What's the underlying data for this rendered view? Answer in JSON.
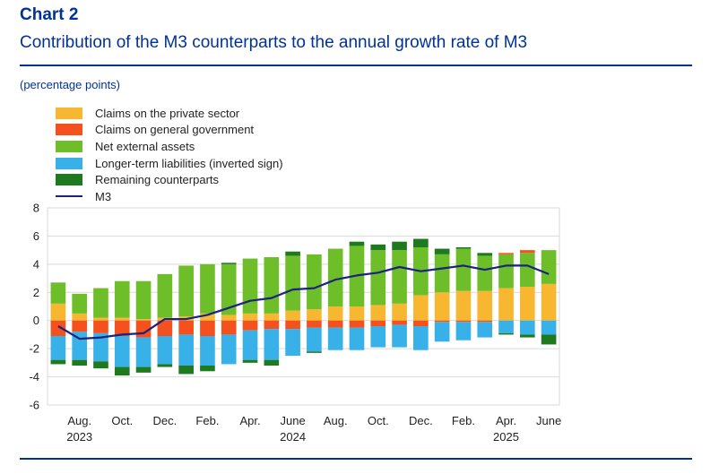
{
  "header": {
    "chart_label": "Chart 2",
    "title": "Contribution of the M3 counterparts to the annual growth rate of M3"
  },
  "unit_note": "(percentage points)",
  "legend": [
    {
      "name": "Claims on the private sector",
      "color": "#f7b731",
      "kind": "bar"
    },
    {
      "name": "Claims on general government",
      "color": "#f4511e",
      "kind": "bar"
    },
    {
      "name": "Net external assets",
      "color": "#6ebe2a",
      "kind": "bar"
    },
    {
      "name": "Longer-term liabilities (inverted sign)",
      "color": "#38b1e8",
      "kind": "bar"
    },
    {
      "name": "Remaining counterparts",
      "color": "#1f7a1f",
      "kind": "bar"
    },
    {
      "name": "M3",
      "color": "#1a237e",
      "kind": "line"
    }
  ],
  "chart_data": {
    "type": "bar",
    "stacked": true,
    "categories": [
      "Jul-23",
      "Aug-23",
      "Sep-23",
      "Oct-23",
      "Nov-23",
      "Dec-23",
      "Jan-24",
      "Feb-24",
      "Mar-24",
      "Apr-24",
      "May-24",
      "Jun-24",
      "Jul-24",
      "Aug-24",
      "Sep-24",
      "Oct-24",
      "Nov-24",
      "Dec-24",
      "Jan-25",
      "Feb-25",
      "Mar-25",
      "Apr-25",
      "May-25",
      "Jun-25"
    ],
    "x_tick_labels": [
      {
        "index": 1,
        "label": "Aug."
      },
      {
        "index": 3,
        "label": "Oct."
      },
      {
        "index": 5,
        "label": "Dec."
      },
      {
        "index": 7,
        "label": "Feb."
      },
      {
        "index": 9,
        "label": "Apr."
      },
      {
        "index": 11,
        "label": "June"
      },
      {
        "index": 13,
        "label": "Aug."
      },
      {
        "index": 15,
        "label": "Oct."
      },
      {
        "index": 17,
        "label": "Dec."
      },
      {
        "index": 19,
        "label": "Feb."
      },
      {
        "index": 21,
        "label": "Apr."
      },
      {
        "index": 23,
        "label": "June"
      }
    ],
    "year_labels": [
      {
        "index": 1,
        "label": "2023"
      },
      {
        "index": 11,
        "label": "2024"
      },
      {
        "index": 21,
        "label": "2025"
      }
    ],
    "y_ticks": [
      8,
      6,
      4,
      2,
      0,
      -2,
      -4,
      -6
    ],
    "ylim": [
      -6,
      8
    ],
    "series": [
      {
        "name": "Claims on the private sector",
        "color": "#f7b731",
        "values": [
          1.2,
          0.5,
          0.2,
          0.2,
          0.1,
          0.2,
          0.3,
          0.5,
          0.4,
          0.5,
          0.5,
          0.7,
          0.8,
          1.0,
          1.0,
          1.1,
          1.2,
          1.8,
          2.0,
          2.1,
          2.1,
          2.3,
          2.4,
          2.6
        ]
      },
      {
        "name": "Net external assets",
        "color": "#6ebe2a",
        "values": [
          1.5,
          1.4,
          2.1,
          2.6,
          2.7,
          3.1,
          3.6,
          3.5,
          3.6,
          3.9,
          4.0,
          3.9,
          3.9,
          4.1,
          4.3,
          3.9,
          3.8,
          3.4,
          2.7,
          3.0,
          2.5,
          2.4,
          2.4,
          2.4
        ]
      },
      {
        "name": "Claims on general government",
        "color": "#f4511e",
        "values": [
          -1.1,
          -0.8,
          -0.9,
          -1.1,
          -1.2,
          -1.1,
          -1.0,
          -1.1,
          -1.0,
          -0.7,
          -0.6,
          -0.6,
          -0.5,
          -0.5,
          -0.5,
          -0.4,
          -0.3,
          -0.4,
          -0.1,
          -0.1,
          -0.1,
          0.1,
          0.2,
          0.0
        ]
      },
      {
        "name": "Longer-term liabilities (inverted sign)",
        "color": "#38b1e8",
        "values": [
          -1.7,
          -2.0,
          -2.0,
          -2.2,
          -2.1,
          -2.0,
          -2.2,
          -2.1,
          -2.1,
          -2.1,
          -2.2,
          -1.9,
          -1.7,
          -1.6,
          -1.6,
          -1.5,
          -1.6,
          -1.7,
          -1.4,
          -1.3,
          -1.1,
          -0.9,
          -1.0,
          -1.0
        ]
      },
      {
        "name": "Remaining counterparts",
        "color": "#1f7a1f",
        "values": [
          -0.3,
          -0.4,
          -0.5,
          -0.6,
          -0.4,
          -0.2,
          -0.6,
          -0.4,
          0.1,
          -0.2,
          -0.4,
          0.3,
          -0.1,
          0.0,
          0.3,
          0.4,
          0.6,
          0.6,
          0.4,
          0.1,
          0.2,
          -0.1,
          -0.2,
          -0.7
        ]
      }
    ],
    "line": {
      "name": "M3",
      "color": "#1a237e",
      "values": [
        -0.4,
        -1.3,
        -1.2,
        -1.0,
        -0.9,
        0.1,
        0.1,
        0.4,
        0.9,
        1.4,
        1.6,
        2.2,
        2.3,
        2.9,
        3.2,
        3.4,
        3.8,
        3.5,
        3.7,
        3.9,
        3.6,
        3.9,
        3.9,
        3.3
      ]
    }
  }
}
